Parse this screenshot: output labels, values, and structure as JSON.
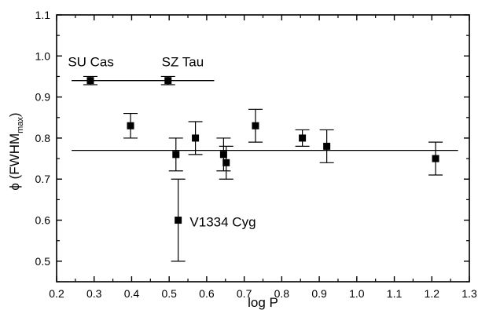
{
  "chart_data": {
    "type": "scatter",
    "xlabel": "log P",
    "ylabel_main": "ϕ (FWHM",
    "ylabel_sub": "max",
    "ylabel_end": ")",
    "xlim": [
      0.2,
      1.3
    ],
    "ylim": [
      0.45,
      1.1
    ],
    "x_ticks": [
      "0.2",
      "0.3",
      "0.4",
      "0.5",
      "0.6",
      "0.7",
      "0.8",
      "0.9",
      "1.0",
      "1.1",
      "1.2",
      "1.3"
    ],
    "y_ticks": [
      "0.5",
      "0.6",
      "0.7",
      "0.8",
      "0.9",
      "1.0",
      "1.1"
    ],
    "grid": false,
    "points": [
      {
        "x": 0.29,
        "y": 0.94,
        "err": 0.01
      },
      {
        "x": 0.397,
        "y": 0.83,
        "err": 0.03
      },
      {
        "x": 0.497,
        "y": 0.94,
        "err": 0.01
      },
      {
        "x": 0.518,
        "y": 0.76,
        "err": 0.04
      },
      {
        "x": 0.524,
        "y": 0.6,
        "err": 0.1
      },
      {
        "x": 0.57,
        "y": 0.8,
        "err": 0.04
      },
      {
        "x": 0.645,
        "y": 0.76,
        "err": 0.04
      },
      {
        "x": 0.652,
        "y": 0.74,
        "err": 0.04
      },
      {
        "x": 0.73,
        "y": 0.83,
        "err": 0.04
      },
      {
        "x": 0.855,
        "y": 0.8,
        "err": 0.02
      },
      {
        "x": 0.92,
        "y": 0.78,
        "err": 0.04
      },
      {
        "x": 1.21,
        "y": 0.75,
        "err": 0.04
      }
    ],
    "lines": [
      {
        "x1": 0.24,
        "x2": 0.62,
        "y": 0.94
      },
      {
        "x1": 0.24,
        "x2": 1.27,
        "y": 0.77
      }
    ],
    "annotations": [
      {
        "text": "SU Cas",
        "x": 0.23,
        "y": 0.975
      },
      {
        "text": "SZ Tau",
        "x": 0.48,
        "y": 0.975
      },
      {
        "text": "V1334 Cyg",
        "x": 0.555,
        "y": 0.585
      }
    ]
  }
}
